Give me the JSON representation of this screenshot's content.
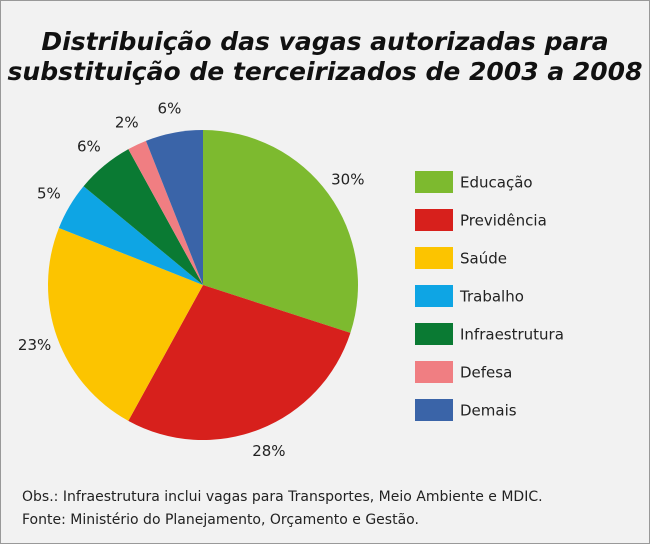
{
  "chart_data": {
    "type": "pie",
    "title": [
      "Distribuição das vagas autorizadas para",
      "substituição de terceirizados de 2003 a 2008"
    ],
    "categories": [
      "Educação",
      "Previdência",
      "Saúde",
      "Trabalho",
      "Infraestrutura",
      "Defesa",
      "Demais"
    ],
    "values": [
      30,
      28,
      23,
      5,
      6,
      2,
      6
    ],
    "value_labels": [
      "30%",
      "28%",
      "23%",
      "5%",
      "6%",
      "2%",
      "6%"
    ],
    "colors": [
      "#7dba2f",
      "#d7201c",
      "#fcc400",
      "#0ea5e4",
      "#0a7a33",
      "#f07e82",
      "#3a64a8"
    ],
    "notes": [
      "Obs.: Infraestrutura inclui vagas para Transportes, Meio Ambiente e MDIC.",
      "Fonte: Ministério do Planejamento, Orçamento e Gestão."
    ]
  }
}
